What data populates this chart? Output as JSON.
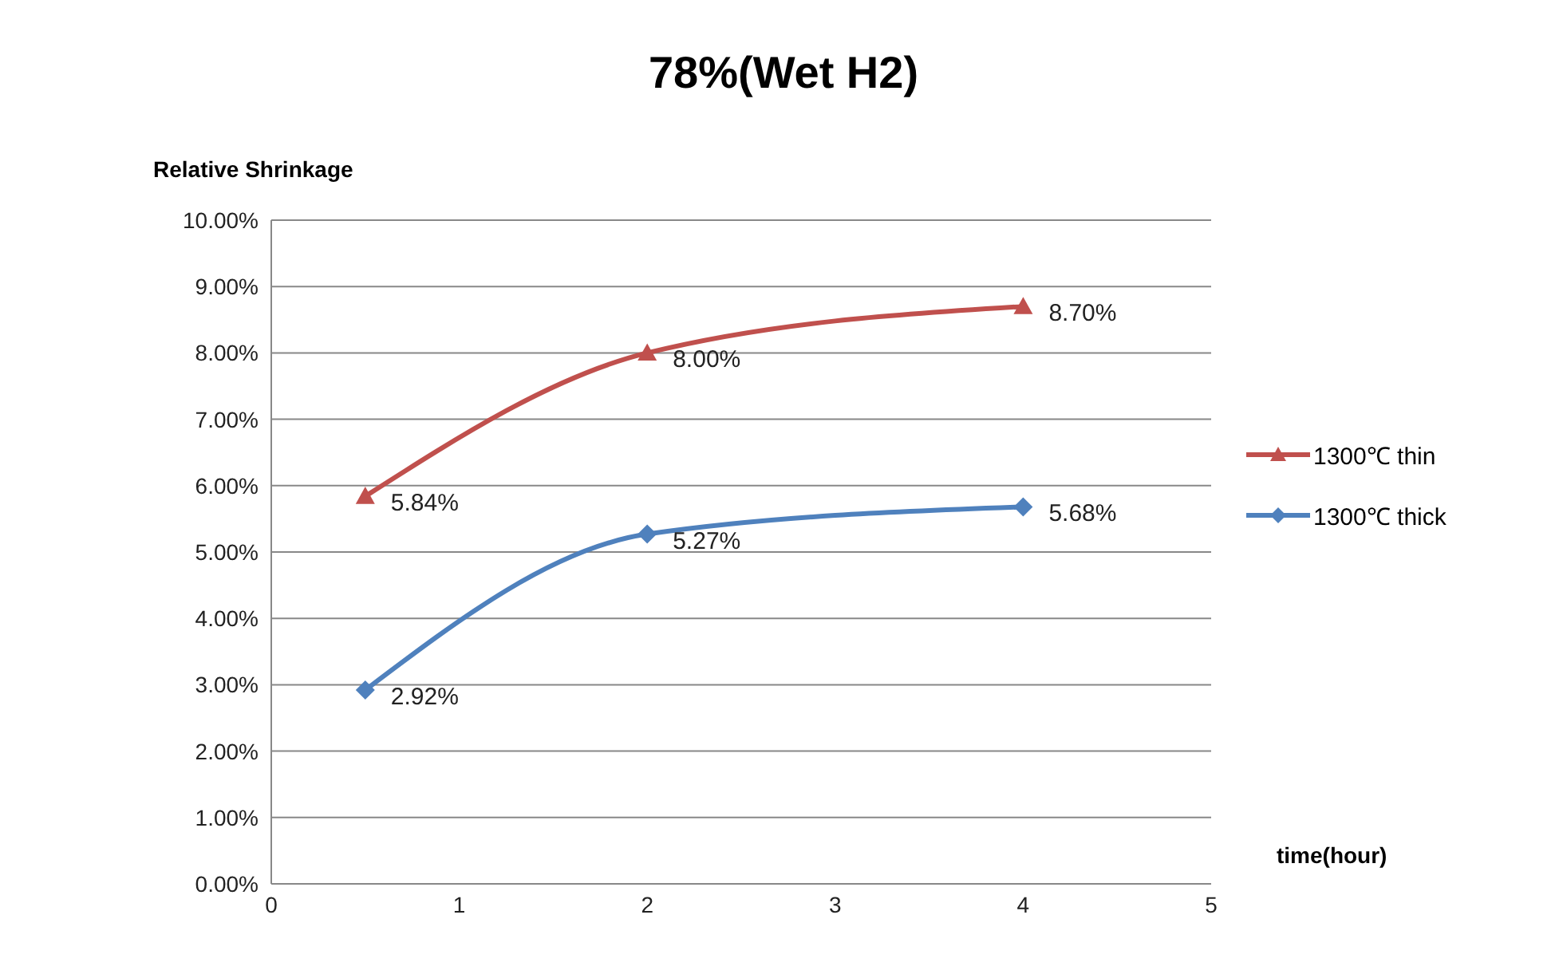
{
  "chart_data": {
    "type": "line",
    "title": "78%(Wet H2)",
    "xlabel": "time(hour)",
    "ylabel": "Relative Shrinkage",
    "x": [
      0.5,
      2,
      4
    ],
    "series": [
      {
        "name": "1300℃ thin",
        "color": "#c0504d",
        "marker": "triangle",
        "values": [
          5.84,
          8.0,
          8.7
        ],
        "value_labels": [
          "5.84%",
          "8.00%",
          "8.70%"
        ]
      },
      {
        "name": "1300℃ thick",
        "color": "#4f81bd",
        "marker": "diamond",
        "values": [
          2.92,
          5.27,
          5.68
        ],
        "value_labels": [
          "2.92%",
          "5.27%",
          "5.68%"
        ]
      }
    ],
    "xlim": [
      0,
      5
    ],
    "xticks": [
      0,
      1,
      2,
      3,
      4,
      5
    ],
    "ylim": [
      0,
      10
    ],
    "yticks": [
      {
        "value": 0,
        "label": "0.00%"
      },
      {
        "value": 1,
        "label": "1.00%"
      },
      {
        "value": 2,
        "label": "2.00%"
      },
      {
        "value": 3,
        "label": "3.00%"
      },
      {
        "value": 4,
        "label": "4.00%"
      },
      {
        "value": 5,
        "label": "5.00%"
      },
      {
        "value": 6,
        "label": "6.00%"
      },
      {
        "value": 7,
        "label": "7.00%"
      },
      {
        "value": 8,
        "label": "8.00%"
      },
      {
        "value": 9,
        "label": "9.00%"
      },
      {
        "value": 10,
        "label": "10.00%"
      }
    ],
    "grid": "y",
    "legend": "right",
    "line_style": "solid"
  }
}
